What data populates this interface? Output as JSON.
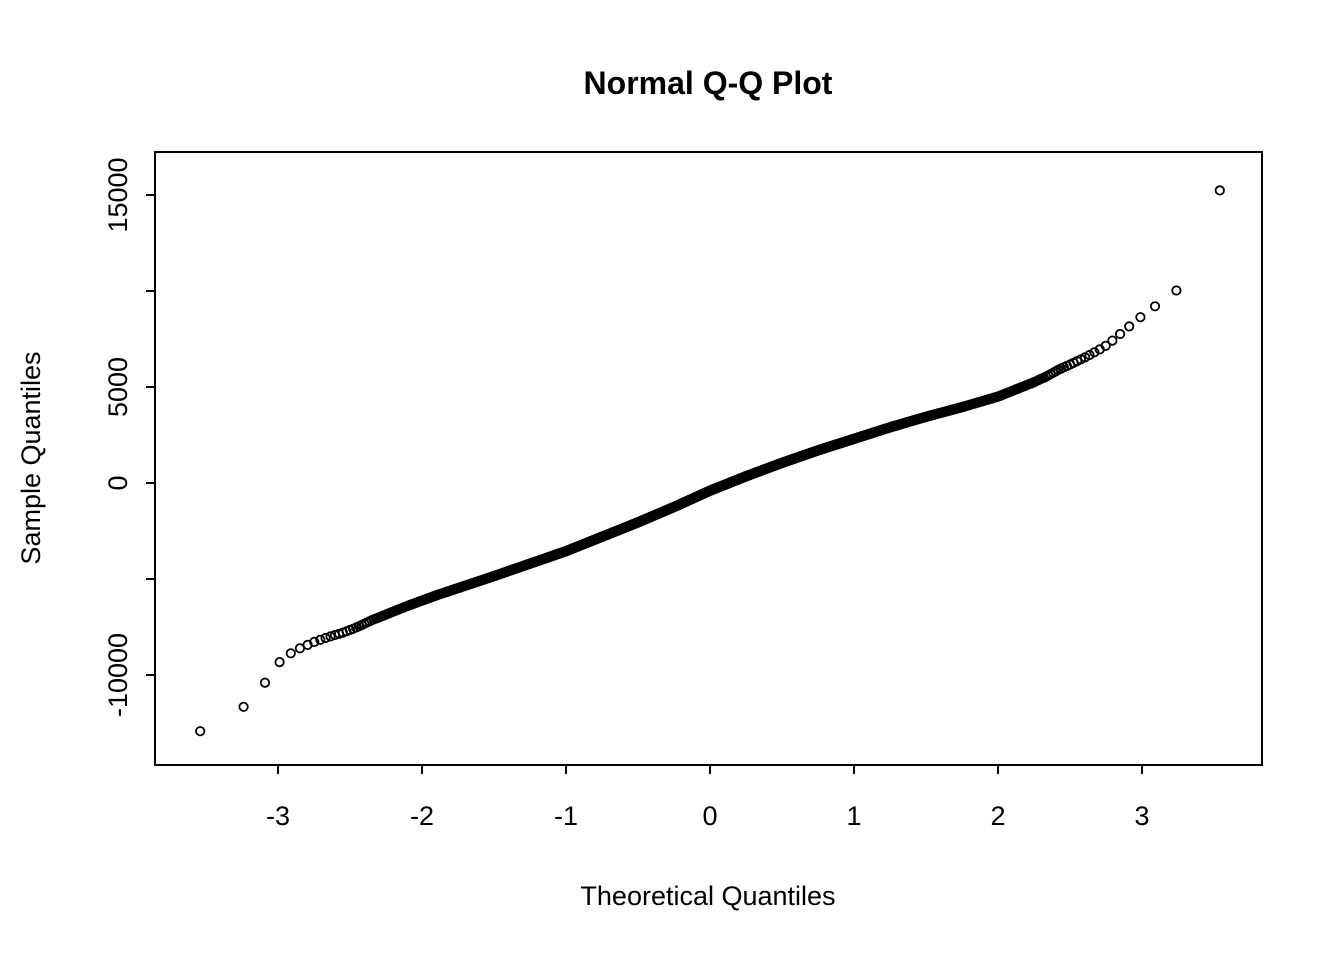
{
  "chart_data": {
    "type": "scatter",
    "subtype": "normal-qq-plot",
    "title": "Normal Q-Q Plot",
    "xlabel": "Theoretical Quantiles",
    "ylabel": "Sample Quantiles",
    "xlim": [
      -3.85,
      3.85
    ],
    "ylim": [
      -13500,
      16000
    ],
    "grid": false,
    "legend": null,
    "background": "#FFFFFF",
    "x_ticks": [
      -3,
      -2,
      -1,
      0,
      1,
      2,
      3
    ],
    "y_ticks": [
      {
        "value": -10000,
        "label": "-10000"
      },
      {
        "value": -5000,
        "label": ""
      },
      {
        "value": 0,
        "label": "0"
      },
      {
        "value": 5000,
        "label": "5000"
      },
      {
        "value": 10000,
        "label": ""
      },
      {
        "value": 15000,
        "label": "15000"
      }
    ],
    "n_points": 2500,
    "marker": {
      "shape": "open-circle",
      "color": "#000000",
      "radius_px": 4.2,
      "stroke_width_px": 1.8
    },
    "qq_curve": [
      [
        -3.56,
        -13000
      ],
      [
        -3.28,
        -12000
      ],
      [
        -3.09,
        -10400
      ],
      [
        -3.0,
        -9400
      ],
      [
        -2.93,
        -8950
      ],
      [
        -2.86,
        -8650
      ],
      [
        -2.8,
        -8450
      ],
      [
        -2.74,
        -8250
      ],
      [
        -2.68,
        -8100
      ],
      [
        -2.62,
        -7950
      ],
      [
        -2.55,
        -7800
      ],
      [
        -2.48,
        -7600
      ],
      [
        -2.42,
        -7400
      ],
      [
        -2.35,
        -7150
      ],
      [
        -2.25,
        -6850
      ],
      [
        -2.1,
        -6400
      ],
      [
        -1.9,
        -5850
      ],
      [
        -1.7,
        -5350
      ],
      [
        -1.5,
        -4850
      ],
      [
        -1.25,
        -4200
      ],
      [
        -1.0,
        -3550
      ],
      [
        -0.75,
        -2800
      ],
      [
        -0.5,
        -2050
      ],
      [
        -0.25,
        -1250
      ],
      [
        0.0,
        -400
      ],
      [
        0.25,
        350
      ],
      [
        0.5,
        1050
      ],
      [
        0.75,
        1700
      ],
      [
        1.0,
        2300
      ],
      [
        1.25,
        2900
      ],
      [
        1.5,
        3450
      ],
      [
        1.75,
        3950
      ],
      [
        2.0,
        4500
      ],
      [
        2.15,
        4950
      ],
      [
        2.25,
        5250
      ],
      [
        2.35,
        5600
      ],
      [
        2.42,
        5900
      ],
      [
        2.48,
        6100
      ],
      [
        2.55,
        6350
      ],
      [
        2.62,
        6600
      ],
      [
        2.68,
        6850
      ],
      [
        2.74,
        7100
      ],
      [
        2.8,
        7450
      ],
      [
        2.87,
        7900
      ],
      [
        2.95,
        8400
      ],
      [
        3.05,
        9000
      ],
      [
        3.15,
        9500
      ],
      [
        3.26,
        10150
      ],
      [
        3.56,
        15600
      ]
    ]
  }
}
